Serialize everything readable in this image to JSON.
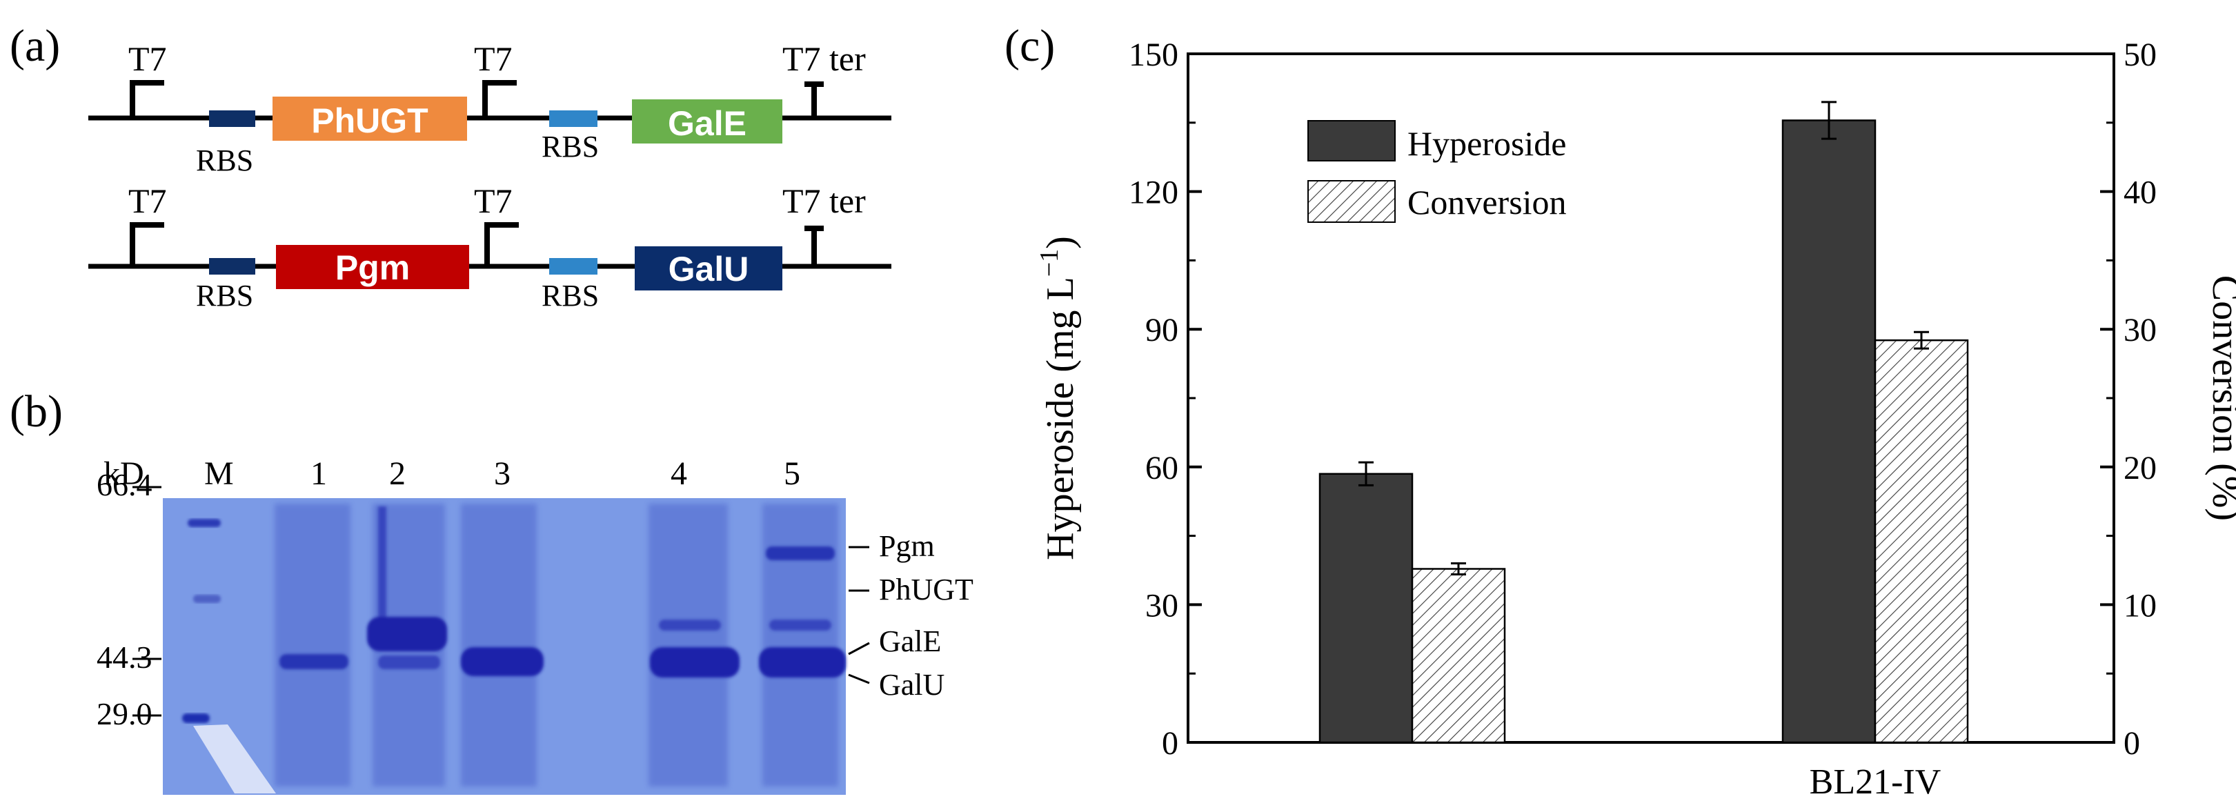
{
  "panels": {
    "a": "(a)",
    "b": "(b)",
    "c": "(c)"
  },
  "construct1": {
    "promoter1": "T7",
    "rbs1": "RBS",
    "gene1": "PhUGT",
    "gene1_color": "#ef8a3e",
    "promoter2": "T7",
    "rbs2": "RBS",
    "gene2": "GalE",
    "gene2_color": "#6ab04c",
    "terminator": "T7 ter"
  },
  "construct2": {
    "promoter1": "T7",
    "rbs1": "RBS",
    "gene1": "Pgm",
    "gene1_color": "#c00000",
    "promoter2": "T7",
    "rbs2": "RBS",
    "gene2": "GalU",
    "gene2_color": "#0b2d6b",
    "terminator": "T7 ter"
  },
  "colors": {
    "rbs_dark": "#0e2f66",
    "rbs_light": "#2f86c9",
    "gel_bg": "#7b9ae6",
    "band": "#1f2fb8",
    "bar_dark": "#3a3a3a"
  },
  "gel": {
    "kd_label": "kD",
    "lanes": [
      "M",
      "1",
      "2",
      "3",
      "4",
      "5"
    ],
    "markers": [
      "66.4",
      "44.3",
      "29.0"
    ],
    "band_labels": [
      "Pgm",
      "PhUGT",
      "GalE",
      "GalU"
    ]
  },
  "chart_data": {
    "type": "bar",
    "categories": [
      "",
      "BL21-IV"
    ],
    "series": [
      {
        "name": "Hyperoside",
        "axis": "left",
        "values": [
          58.5,
          135.5
        ],
        "errors": [
          2.5,
          4
        ]
      },
      {
        "name": "Conversion",
        "axis": "right",
        "values": [
          12.6,
          29.2
        ],
        "errors": [
          0.4,
          0.6
        ]
      }
    ],
    "ylabel": "Hyperoside (mg L",
    "ylabel_sup": "−1",
    "ylabel_close": ")",
    "y2label": "Conversion (%)",
    "ylim": [
      0,
      150
    ],
    "y2lim": [
      0,
      50
    ],
    "yticks": [
      "0",
      "30",
      "60",
      "90",
      "120",
      "150"
    ],
    "y2ticks": [
      "0",
      "10",
      "20",
      "30",
      "40",
      "50"
    ],
    "legend_position": "top-left",
    "grid": false
  }
}
